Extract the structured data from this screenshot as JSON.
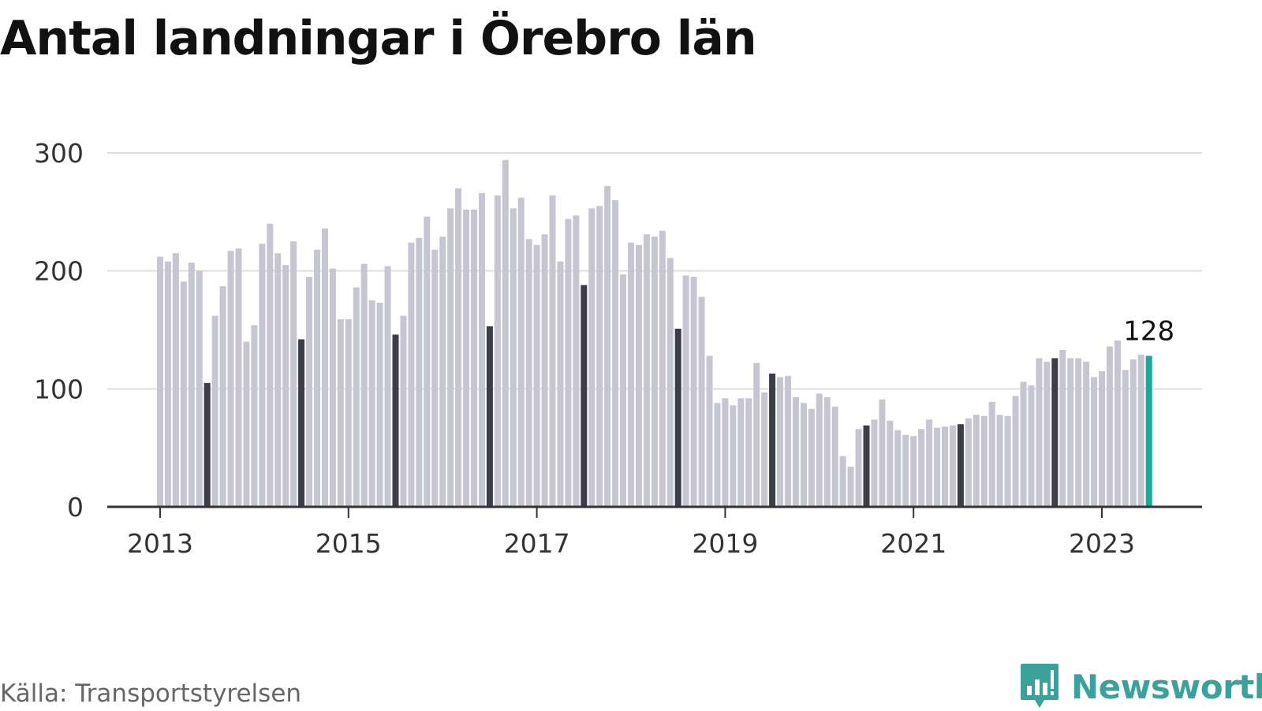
{
  "header": {
    "title": "Antal landningar i Örebro län"
  },
  "footer": {
    "source": "Källa: Transportstyrelsen",
    "brand": "Newsworthy"
  },
  "colors": {
    "bar": "#c6c6d2",
    "july": "#3d3c4a",
    "latest": "#19a89b",
    "grid": "#dedede",
    "axis": "#333333",
    "brand": "#3aa29a"
  },
  "icons": {
    "brand_logo": "bar-chart-speech-bubble-icon"
  },
  "chart_data": {
    "type": "bar",
    "title": "Antal landningar i Örebro län",
    "xlabel": "",
    "ylabel": "",
    "ylim": [
      0,
      300
    ],
    "y_ticks": [
      0,
      100,
      200,
      300
    ],
    "x_tick_labels": [
      "2013",
      "2015",
      "2017",
      "2019",
      "2021",
      "2023"
    ],
    "start": "2013-01",
    "end": "2023-07",
    "frequency": "monthly",
    "highlight": {
      "July bars": "dark",
      "last bar": "teal"
    },
    "last_value_label": "128",
    "values": [
      212,
      208,
      215,
      191,
      207,
      200,
      105,
      162,
      187,
      217,
      219,
      140,
      154,
      223,
      240,
      215,
      205,
      225,
      142,
      195,
      218,
      236,
      202,
      159,
      159,
      186,
      206,
      175,
      173,
      204,
      146,
      162,
      224,
      228,
      246,
      218,
      229,
      253,
      270,
      252,
      252,
      266,
      153,
      264,
      294,
      253,
      262,
      227,
      222,
      231,
      264,
      208,
      244,
      247,
      188,
      253,
      255,
      272,
      260,
      197,
      224,
      222,
      231,
      229,
      234,
      211,
      151,
      196,
      195,
      178,
      128,
      88,
      92,
      86,
      92,
      92,
      122,
      97,
      113,
      110,
      111,
      93,
      88,
      83,
      96,
      93,
      85,
      43,
      34,
      66,
      69,
      74,
      91,
      73,
      65,
      61,
      60,
      66,
      74,
      67,
      68,
      69,
      70,
      75,
      78,
      77,
      89,
      78,
      77,
      94,
      106,
      103,
      126,
      123,
      126,
      133,
      126,
      126,
      123,
      110,
      115,
      136,
      141,
      116,
      125,
      129,
      128
    ]
  }
}
